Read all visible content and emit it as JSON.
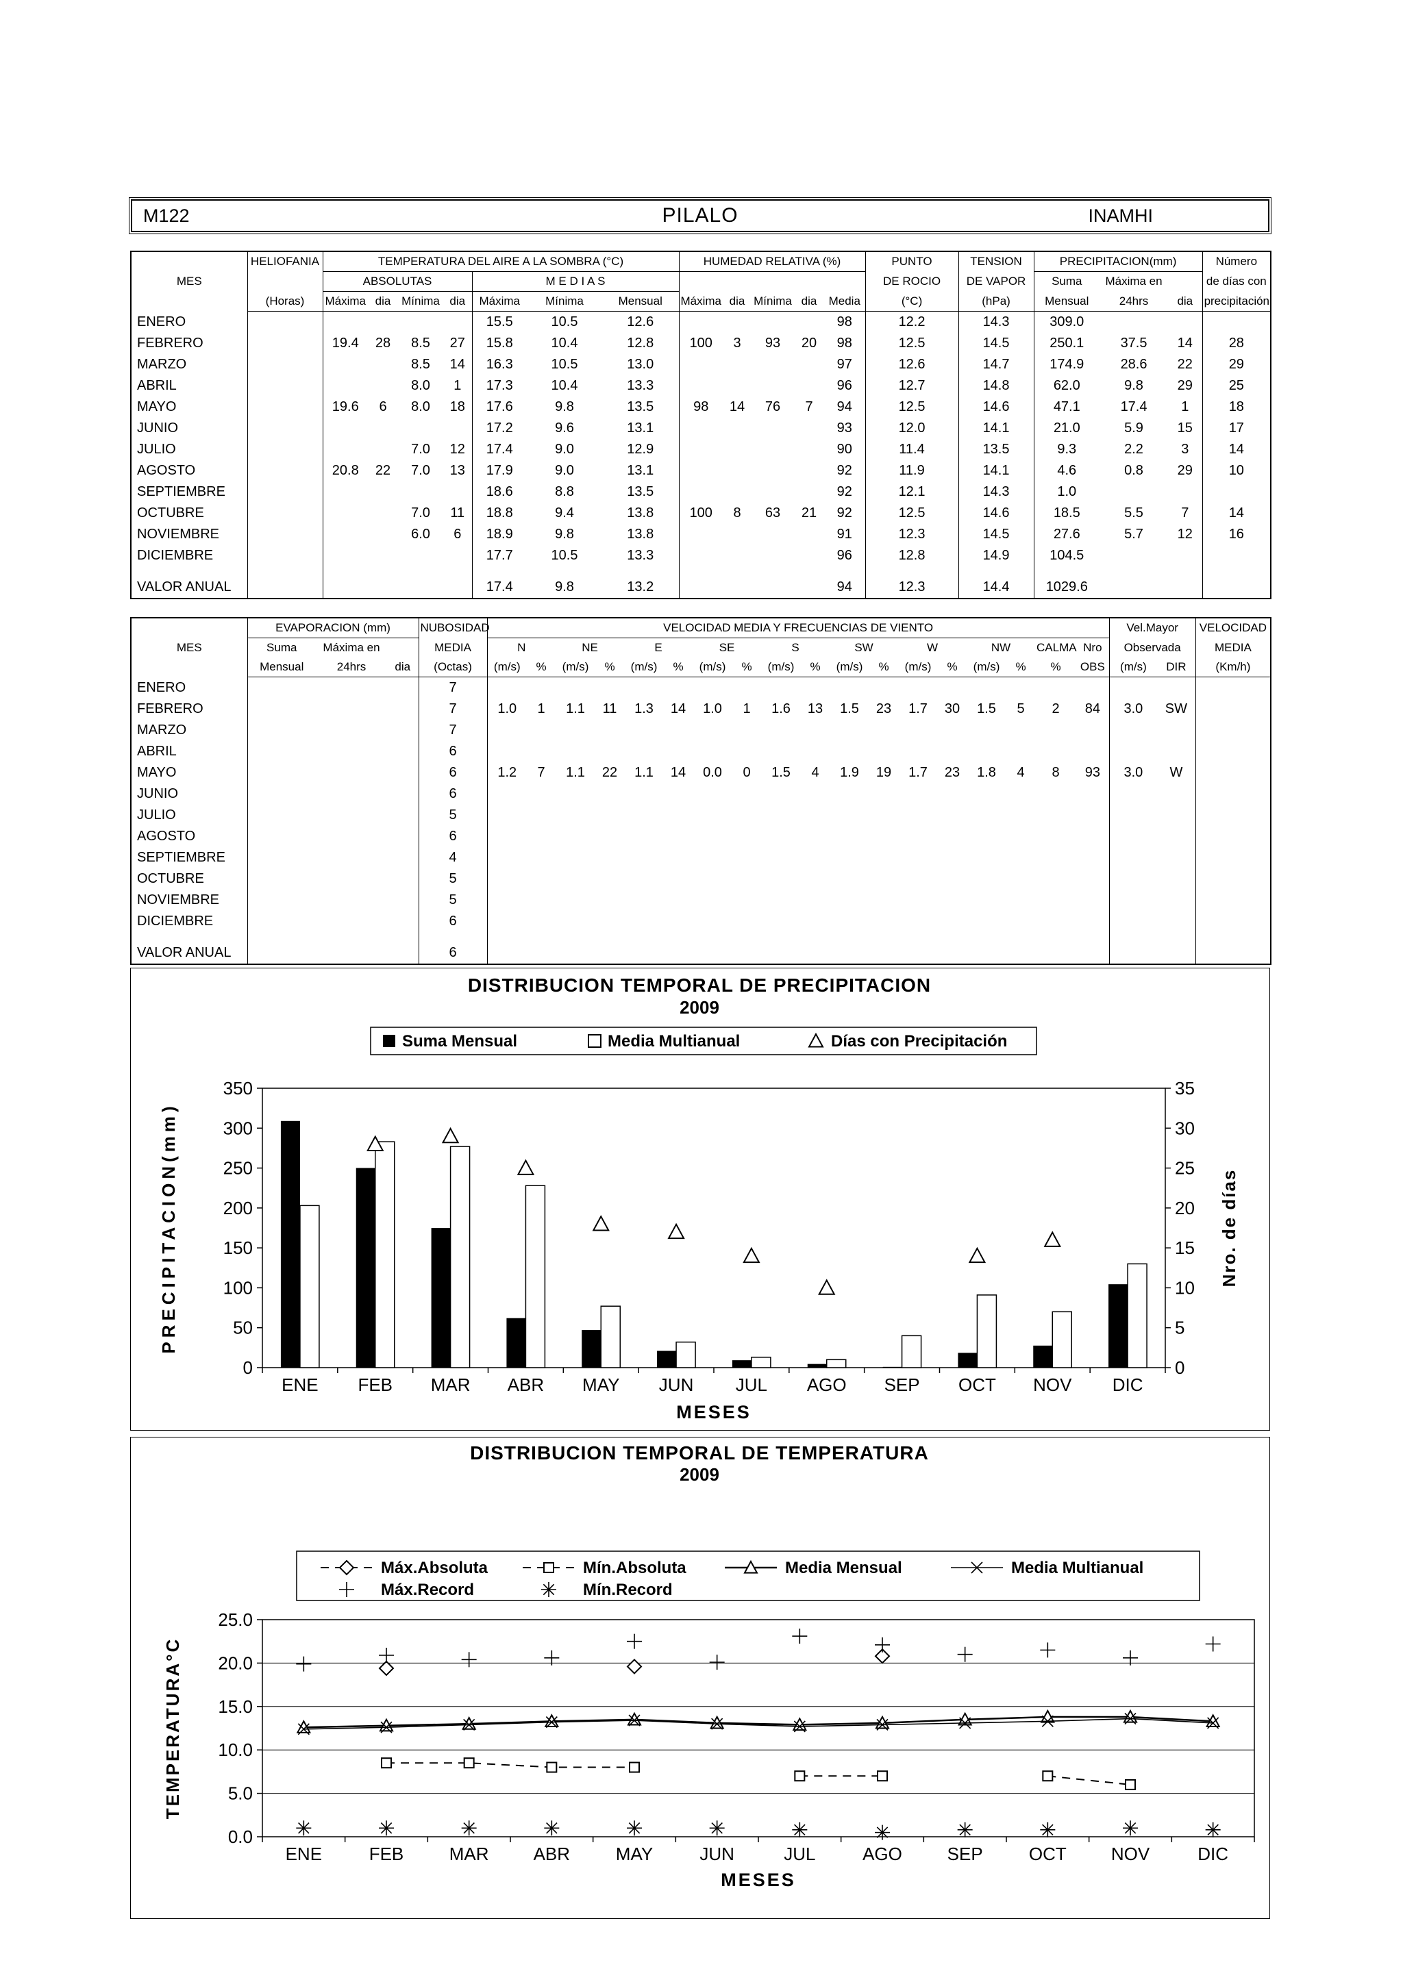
{
  "header": {
    "station_code": "M122",
    "station_name": "PILALO",
    "agency": "INAMHI"
  },
  "table1": {
    "headers": {
      "mes": "MES",
      "heliofania": "HELIOFANIA",
      "heliofania_unit": "(Horas)",
      "temperatura": "TEMPERATURA DEL AIRE A LA SOMBRA (°C)",
      "absolutas": "ABSOLUTAS",
      "medias": "M E D I A S",
      "maxima": "Máxima",
      "minima": "Mínima",
      "dia": "dia",
      "mensual": "Mensual",
      "humedad": "HUMEDAD RELATIVA (%)",
      "media": "Media",
      "punto1": "PUNTO",
      "punto2": "DE ROCIO",
      "punto3": "(°C)",
      "tension1": "TENSION",
      "tension2": "DE VAPOR",
      "tension3": "(hPa)",
      "precipitacion": "PRECIPITACION(mm)",
      "suma": "Suma",
      "maxima_en": "Máxima en",
      "hrs": "24hrs",
      "numero1": "Número",
      "numero2": "de días con",
      "numero3": "precipitación"
    },
    "rows": [
      [
        "ENERO",
        "",
        "",
        "",
        "",
        "",
        "15.5",
        "10.5",
        "12.6",
        "",
        "",
        "",
        "",
        "98",
        "12.2",
        "14.3",
        "309.0",
        "",
        "",
        ""
      ],
      [
        "FEBRERO",
        "",
        "19.4",
        "28",
        "8.5",
        "27",
        "15.8",
        "10.4",
        "12.8",
        "100",
        "3",
        "93",
        "20",
        "98",
        "12.5",
        "14.5",
        "250.1",
        "37.5",
        "14",
        "28"
      ],
      [
        "MARZO",
        "",
        "",
        "",
        "8.5",
        "14",
        "16.3",
        "10.5",
        "13.0",
        "",
        "",
        "",
        "",
        "97",
        "12.6",
        "14.7",
        "174.9",
        "28.6",
        "22",
        "29"
      ],
      [
        "ABRIL",
        "",
        "",
        "",
        "8.0",
        "1",
        "17.3",
        "10.4",
        "13.3",
        "",
        "",
        "",
        "",
        "96",
        "12.7",
        "14.8",
        "62.0",
        "9.8",
        "29",
        "25"
      ],
      [
        "MAYO",
        "",
        "19.6",
        "6",
        "8.0",
        "18",
        "17.6",
        "9.8",
        "13.5",
        "98",
        "14",
        "76",
        "7",
        "94",
        "12.5",
        "14.6",
        "47.1",
        "17.4",
        "1",
        "18"
      ],
      [
        "JUNIO",
        "",
        "",
        "",
        "",
        "",
        "17.2",
        "9.6",
        "13.1",
        "",
        "",
        "",
        "",
        "93",
        "12.0",
        "14.1",
        "21.0",
        "5.9",
        "15",
        "17"
      ],
      [
        "JULIO",
        "",
        "",
        "",
        "7.0",
        "12",
        "17.4",
        "9.0",
        "12.9",
        "",
        "",
        "",
        "",
        "90",
        "11.4",
        "13.5",
        "9.3",
        "2.2",
        "3",
        "14"
      ],
      [
        "AGOSTO",
        "",
        "20.8",
        "22",
        "7.0",
        "13",
        "17.9",
        "9.0",
        "13.1",
        "",
        "",
        "",
        "",
        "92",
        "11.9",
        "14.1",
        "4.6",
        "0.8",
        "29",
        "10"
      ],
      [
        "SEPTIEMBRE",
        "",
        "",
        "",
        "",
        "",
        "18.6",
        "8.8",
        "13.5",
        "",
        "",
        "",
        "",
        "92",
        "12.1",
        "14.3",
        "1.0",
        "",
        "",
        ""
      ],
      [
        "OCTUBRE",
        "",
        "",
        "",
        "7.0",
        "11",
        "18.8",
        "9.4",
        "13.8",
        "100",
        "8",
        "63",
        "21",
        "92",
        "12.5",
        "14.6",
        "18.5",
        "5.5",
        "7",
        "14"
      ],
      [
        "NOVIEMBRE",
        "",
        "",
        "",
        "6.0",
        "6",
        "18.9",
        "9.8",
        "13.8",
        "",
        "",
        "",
        "",
        "91",
        "12.3",
        "14.5",
        "27.6",
        "5.7",
        "12",
        "16"
      ],
      [
        "DICIEMBRE",
        "",
        "",
        "",
        "",
        "",
        "17.7",
        "10.5",
        "13.3",
        "",
        "",
        "",
        "",
        "96",
        "12.8",
        "14.9",
        "104.5",
        "",
        "",
        ""
      ]
    ],
    "annual": [
      "VALOR ANUAL",
      "",
      "",
      "",
      "",
      "",
      "17.4",
      "9.8",
      "13.2",
      "",
      "",
      "",
      "",
      "94",
      "12.3",
      "14.4",
      "1029.6",
      "",
      "",
      ""
    ]
  },
  "table2": {
    "headers": {
      "mes": "MES",
      "evaporacion": "EVAPORACION (mm)",
      "suma": "Suma",
      "maxima_en": "Máxima en",
      "mensual": "Mensual",
      "hrs": "24hrs",
      "dia": "dia",
      "nubosidad1": "NUBOSIDAD",
      "nubosidad2": "MEDIA",
      "nubosidad3": "(Octas)",
      "viento": "VELOCIDAD MEDIA Y FRECUENCIAS DE VIENTO",
      "dirs": [
        "N",
        "NE",
        "E",
        "SE",
        "S",
        "SW",
        "W",
        "NW"
      ],
      "ms": "(m/s)",
      "pct": "%",
      "calma": "CALMA",
      "nro": "Nro",
      "obs": "OBS",
      "velmayor1": "Vel.Mayor",
      "velmayor2": "Observada",
      "dir": "DIR",
      "velocidad1": "VELOCIDAD",
      "velocidad2": "MEDIA",
      "velocidad3": "(Km/h)"
    },
    "rows": [
      [
        "ENERO",
        "",
        "",
        "",
        "7",
        "",
        "",
        "",
        "",
        "",
        "",
        "",
        "",
        "",
        "",
        "",
        "",
        "",
        "",
        "",
        "",
        "",
        "",
        "",
        "",
        ""
      ],
      [
        "FEBRERO",
        "",
        "",
        "",
        "7",
        "1.0",
        "1",
        "1.1",
        "11",
        "1.3",
        "14",
        "1.0",
        "1",
        "1.6",
        "13",
        "1.5",
        "23",
        "1.7",
        "30",
        "1.5",
        "5",
        "2",
        "84",
        "3.0",
        "SW",
        ""
      ],
      [
        "MARZO",
        "",
        "",
        "",
        "7",
        "",
        "",
        "",
        "",
        "",
        "",
        "",
        "",
        "",
        "",
        "",
        "",
        "",
        "",
        "",
        "",
        "",
        "",
        "",
        "",
        ""
      ],
      [
        "ABRIL",
        "",
        "",
        "",
        "6",
        "",
        "",
        "",
        "",
        "",
        "",
        "",
        "",
        "",
        "",
        "",
        "",
        "",
        "",
        "",
        "",
        "",
        "",
        "",
        "",
        ""
      ],
      [
        "MAYO",
        "",
        "",
        "",
        "6",
        "1.2",
        "7",
        "1.1",
        "22",
        "1.1",
        "14",
        "0.0",
        "0",
        "1.5",
        "4",
        "1.9",
        "19",
        "1.7",
        "23",
        "1.8",
        "4",
        "8",
        "93",
        "3.0",
        "W",
        ""
      ],
      [
        "JUNIO",
        "",
        "",
        "",
        "6",
        "",
        "",
        "",
        "",
        "",
        "",
        "",
        "",
        "",
        "",
        "",
        "",
        "",
        "",
        "",
        "",
        "",
        "",
        "",
        "",
        ""
      ],
      [
        "JULIO",
        "",
        "",
        "",
        "5",
        "",
        "",
        "",
        "",
        "",
        "",
        "",
        "",
        "",
        "",
        "",
        "",
        "",
        "",
        "",
        "",
        "",
        "",
        "",
        "",
        ""
      ],
      [
        "AGOSTO",
        "",
        "",
        "",
        "6",
        "",
        "",
        "",
        "",
        "",
        "",
        "",
        "",
        "",
        "",
        "",
        "",
        "",
        "",
        "",
        "",
        "",
        "",
        "",
        "",
        ""
      ],
      [
        "SEPTIEMBRE",
        "",
        "",
        "",
        "4",
        "",
        "",
        "",
        "",
        "",
        "",
        "",
        "",
        "",
        "",
        "",
        "",
        "",
        "",
        "",
        "",
        "",
        "",
        "",
        "",
        ""
      ],
      [
        "OCTUBRE",
        "",
        "",
        "",
        "5",
        "",
        "",
        "",
        "",
        "",
        "",
        "",
        "",
        "",
        "",
        "",
        "",
        "",
        "",
        "",
        "",
        "",
        "",
        "",
        "",
        ""
      ],
      [
        "NOVIEMBRE",
        "",
        "",
        "",
        "5",
        "",
        "",
        "",
        "",
        "",
        "",
        "",
        "",
        "",
        "",
        "",
        "",
        "",
        "",
        "",
        "",
        "",
        "",
        "",
        "",
        ""
      ],
      [
        "DICIEMBRE",
        "",
        "",
        "",
        "6",
        "",
        "",
        "",
        "",
        "",
        "",
        "",
        "",
        "",
        "",
        "",
        "",
        "",
        "",
        "",
        "",
        "",
        "",
        "",
        "",
        ""
      ]
    ],
    "annual": [
      "VALOR ANUAL",
      "",
      "",
      "",
      "6",
      "",
      "",
      "",
      "",
      "",
      "",
      "",
      "",
      "",
      "",
      "",
      "",
      "",
      "",
      "",
      "",
      "",
      "",
      "",
      "",
      ""
    ]
  },
  "chart_data": [
    {
      "id": "precipitation",
      "type": "bar",
      "title": "DISTRIBUCION TEMPORAL DE PRECIPITACION",
      "subtitle": "2009",
      "categories": [
        "ENE",
        "FEB",
        "MAR",
        "ABR",
        "MAY",
        "JUN",
        "JUL",
        "AGO",
        "SEP",
        "OCT",
        "NOV",
        "DIC"
      ],
      "series": [
        {
          "name": "Suma Mensual",
          "type": "bar",
          "fill": "black",
          "values": [
            309.0,
            250.1,
            174.9,
            62.0,
            47.1,
            21.0,
            9.3,
            4.6,
            1.0,
            18.5,
            27.6,
            104.5
          ]
        },
        {
          "name": "Media Multianual",
          "type": "bar",
          "fill": "white",
          "values": [
            203,
            283,
            277,
            228,
            77,
            32,
            13,
            10,
            40,
            91,
            70,
            130
          ]
        },
        {
          "name": "Días con Precipitación",
          "type": "scatter",
          "marker": "triangle",
          "axis": "right",
          "values": [
            null,
            28,
            29,
            25,
            18,
            17,
            14,
            10,
            null,
            14,
            16,
            null
          ]
        }
      ],
      "xlabel": "MESES",
      "ylabel": "PRECIPITACION(mm)",
      "ylabel_right": "Nro. de días",
      "ylim": [
        0,
        350
      ],
      "ytick": 50,
      "ylim_right": [
        0,
        35
      ],
      "ytick_right": 5,
      "grid": "off",
      "legend_position": "top"
    },
    {
      "id": "temperature",
      "type": "line",
      "title": "DISTRIBUCION TEMPORAL DE TEMPERATURA",
      "subtitle": "2009",
      "categories": [
        "ENE",
        "FEB",
        "MAR",
        "ABR",
        "MAY",
        "JUN",
        "JUL",
        "AGO",
        "SEP",
        "OCT",
        "NOV",
        "DIC"
      ],
      "series": [
        {
          "name": "Máx.Absoluta",
          "marker": "diamond",
          "line": "dashed",
          "values": [
            null,
            19.4,
            null,
            null,
            19.6,
            null,
            null,
            20.8,
            null,
            null,
            null,
            null
          ]
        },
        {
          "name": "Mín.Absoluta",
          "marker": "square",
          "line": "dashed",
          "values": [
            null,
            8.5,
            8.5,
            8.0,
            8.0,
            null,
            7.0,
            7.0,
            null,
            7.0,
            6.0,
            null
          ]
        },
        {
          "name": "Media Mensual",
          "marker": "triangle",
          "line": "solid",
          "values": [
            12.6,
            12.8,
            13.0,
            13.3,
            13.5,
            13.1,
            12.9,
            13.1,
            13.5,
            13.8,
            13.8,
            13.3
          ]
        },
        {
          "name": "Media Multianual",
          "marker": "x",
          "line": "solid",
          "values": [
            12.4,
            12.6,
            12.9,
            13.2,
            13.4,
            13.0,
            12.7,
            12.9,
            13.1,
            13.3,
            13.6,
            13.1
          ]
        },
        {
          "name": "Máx.Record",
          "marker": "plus",
          "line": "none",
          "values": [
            19.9,
            20.9,
            20.4,
            20.6,
            22.5,
            20.1,
            23.1,
            22.1,
            21.0,
            21.5,
            20.6,
            22.2
          ]
        },
        {
          "name": "Mín.Record",
          "marker": "asterisk",
          "line": "none",
          "values": [
            1.0,
            1.0,
            1.0,
            1.0,
            1.0,
            1.0,
            0.8,
            0.5,
            0.8,
            0.8,
            1.0,
            0.8
          ]
        }
      ],
      "xlabel": "MESES",
      "ylabel": "TEMPERATURA°C",
      "ylim": [
        0,
        25
      ],
      "ytick": 5,
      "grid": "horizontal",
      "legend_position": "top"
    }
  ]
}
